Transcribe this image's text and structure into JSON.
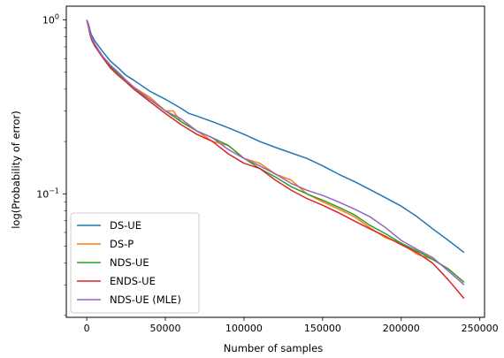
{
  "chart_data": {
    "type": "line",
    "xlabel": "Number of samples",
    "ylabel": "log(Probability of error)",
    "yscale": "log",
    "xlim": [
      -13000,
      253000
    ],
    "ylim": [
      0.0195,
      1.2
    ],
    "x_ticks": [
      0,
      50000,
      100000,
      150000,
      200000,
      250000
    ],
    "x_tick_labels": [
      "0",
      "50000",
      "100000",
      "150000",
      "200000",
      "250000"
    ],
    "y_ticks": [
      1,
      0.1
    ],
    "y_tick_labels_base": [
      "10",
      "10"
    ],
    "y_tick_labels_exp": [
      "0",
      "−1"
    ],
    "grid": false,
    "legend_position": "lower left",
    "series": [
      {
        "name": "DS-UE",
        "color": "#1f77b4",
        "x": [
          0,
          1000,
          2000,
          3000,
          5000,
          10000,
          15000,
          20000,
          25000,
          30000,
          40000,
          50000,
          60000,
          65000,
          70000,
          80000,
          90000,
          100000,
          110000,
          120000,
          130000,
          140000,
          150000,
          160000,
          170000,
          180000,
          190000,
          200000,
          210000,
          220000,
          230000,
          240000
        ],
        "y": [
          1.0,
          0.95,
          0.88,
          0.82,
          0.76,
          0.66,
          0.58,
          0.53,
          0.48,
          0.45,
          0.39,
          0.35,
          0.31,
          0.29,
          0.28,
          0.26,
          0.24,
          0.22,
          0.2,
          0.185,
          0.172,
          0.16,
          0.145,
          0.13,
          0.118,
          0.106,
          0.095,
          0.085,
          0.074,
          0.063,
          0.054,
          0.046
        ]
      },
      {
        "name": "DS-P",
        "color": "#ff7f0e",
        "x": [
          0,
          1000,
          2000,
          3000,
          5000,
          10000,
          15000,
          20000,
          25000,
          30000,
          40000,
          50000,
          55000,
          60000,
          70000,
          80000,
          90000,
          100000,
          110000,
          120000,
          130000,
          140000,
          150000,
          160000,
          170000,
          180000,
          190000,
          200000,
          210000,
          220000,
          230000,
          240000
        ],
        "y": [
          1.0,
          0.93,
          0.85,
          0.79,
          0.72,
          0.62,
          0.54,
          0.49,
          0.45,
          0.41,
          0.36,
          0.3,
          0.3,
          0.26,
          0.23,
          0.2,
          0.19,
          0.16,
          0.15,
          0.13,
          0.12,
          0.1,
          0.09,
          0.082,
          0.074,
          0.064,
          0.056,
          0.052,
          0.045,
          0.042,
          0.037,
          0.031
        ]
      },
      {
        "name": "NDS-UE",
        "color": "#2ca02c",
        "x": [
          0,
          1000,
          2000,
          3000,
          5000,
          10000,
          15000,
          20000,
          25000,
          30000,
          40000,
          50000,
          60000,
          70000,
          80000,
          90000,
          100000,
          110000,
          120000,
          130000,
          140000,
          150000,
          160000,
          170000,
          180000,
          190000,
          200000,
          210000,
          220000,
          230000,
          240000
        ],
        "y": [
          1.0,
          0.93,
          0.85,
          0.78,
          0.72,
          0.62,
          0.54,
          0.49,
          0.44,
          0.4,
          0.35,
          0.3,
          0.26,
          0.23,
          0.21,
          0.19,
          0.16,
          0.14,
          0.125,
          0.11,
          0.1,
          0.092,
          0.084,
          0.076,
          0.066,
          0.059,
          0.052,
          0.047,
          0.042,
          0.037,
          0.031
        ]
      },
      {
        "name": "ENDS-UE",
        "color": "#d62728",
        "x": [
          0,
          1000,
          2000,
          3000,
          5000,
          10000,
          15000,
          20000,
          25000,
          30000,
          40000,
          50000,
          60000,
          70000,
          80000,
          90000,
          100000,
          110000,
          120000,
          130000,
          140000,
          150000,
          160000,
          170000,
          180000,
          190000,
          200000,
          210000,
          220000,
          230000,
          240000
        ],
        "y": [
          1.0,
          0.92,
          0.83,
          0.77,
          0.71,
          0.61,
          0.53,
          0.48,
          0.44,
          0.4,
          0.34,
          0.29,
          0.25,
          0.22,
          0.2,
          0.17,
          0.15,
          0.14,
          0.12,
          0.105,
          0.094,
          0.086,
          0.078,
          0.07,
          0.063,
          0.057,
          0.051,
          0.046,
          0.04,
          0.032,
          0.025
        ]
      },
      {
        "name": "NDS-UE (MLE)",
        "color": "#9467bd",
        "x": [
          0,
          1000,
          2000,
          3000,
          5000,
          10000,
          15000,
          20000,
          25000,
          30000,
          40000,
          50000,
          60000,
          70000,
          80000,
          90000,
          100000,
          110000,
          120000,
          130000,
          140000,
          150000,
          160000,
          170000,
          180000,
          190000,
          200000,
          210000,
          220000,
          230000,
          240000
        ],
        "y": [
          1.0,
          0.94,
          0.86,
          0.79,
          0.73,
          0.62,
          0.55,
          0.5,
          0.45,
          0.41,
          0.35,
          0.3,
          0.27,
          0.23,
          0.21,
          0.18,
          0.16,
          0.145,
          0.13,
          0.115,
          0.105,
          0.098,
          0.09,
          0.082,
          0.074,
          0.064,
          0.054,
          0.048,
          0.043,
          0.036,
          0.03
        ]
      }
    ]
  }
}
